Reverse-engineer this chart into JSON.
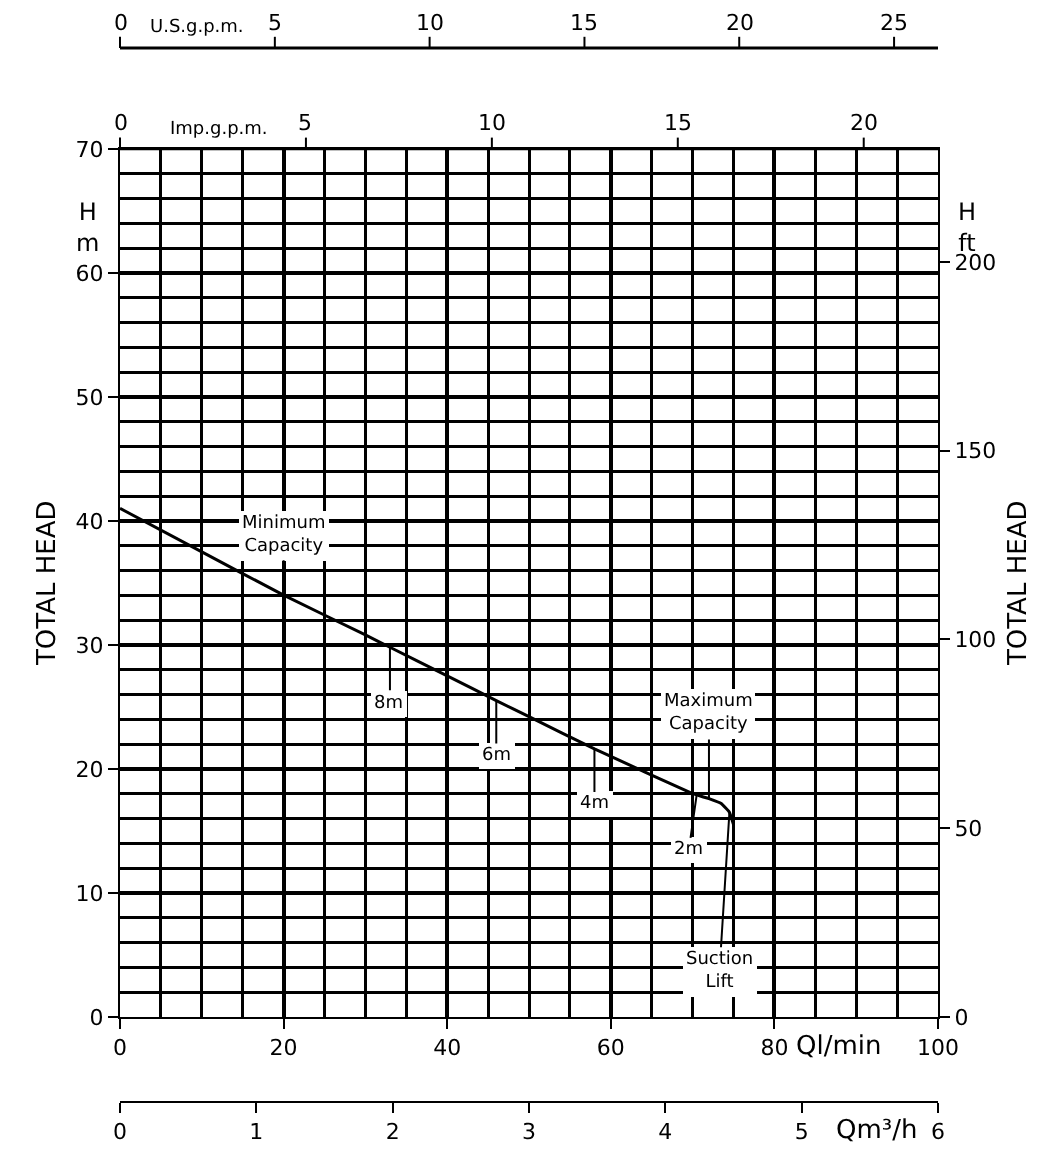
{
  "chart_data": {
    "type": "line",
    "xlabel": "Ql/min",
    "x2label": "Qm³/h",
    "ylabel": "TOTAL HEAD",
    "y2label": "TOTAL HEAD",
    "xlim": [
      0,
      100
    ],
    "xticks": [
      0,
      20,
      40,
      60,
      80,
      100
    ],
    "x2lim": [
      0,
      6
    ],
    "x2ticks": [
      0,
      1,
      2,
      3,
      4,
      5,
      6
    ],
    "ylim": [
      0,
      70
    ],
    "yticks": [
      0,
      10,
      20,
      30,
      40,
      50,
      60,
      70
    ],
    "y2lim": [
      0,
      230
    ],
    "y2ticks": [
      0,
      50,
      100,
      150,
      200
    ],
    "grid": true,
    "series": [
      {
        "color": "#000000",
        "x": [
          0,
          10,
          20,
          30,
          33,
          40,
          46,
          50,
          58,
          60,
          70,
          70.5,
          72,
          73.5,
          74.5,
          75
        ],
        "values": [
          41,
          37.5,
          34,
          30.8,
          29.8,
          27.5,
          25.5,
          24.2,
          21.6,
          21,
          18,
          17.9,
          17.6,
          17.2,
          16.5,
          15.5
        ]
      }
    ],
    "annotations": [
      "H m",
      "H ft",
      "U.S.g.p.m.",
      "0",
      "5",
      "10",
      "15",
      "20",
      "25",
      "Imp.g.p.m.",
      "0",
      "5",
      "10",
      "15",
      "20",
      {
        "text": "Minimum Capacity",
        "x": 20,
        "y": 34
      },
      {
        "text": "8m",
        "x": 33,
        "y": 29.8
      },
      {
        "text": "6m",
        "x": 46,
        "y": 25.5
      },
      {
        "text": "4m",
        "x": 58,
        "y": 21.6
      },
      {
        "text": "2m",
        "x": 70.5,
        "y": 17.9
      },
      {
        "text": "Maximum Capacity",
        "x": 72,
        "y": 17.6
      },
      {
        "text": "Suction Lift",
        "x": 74.5,
        "y": 16.5
      }
    ]
  }
}
